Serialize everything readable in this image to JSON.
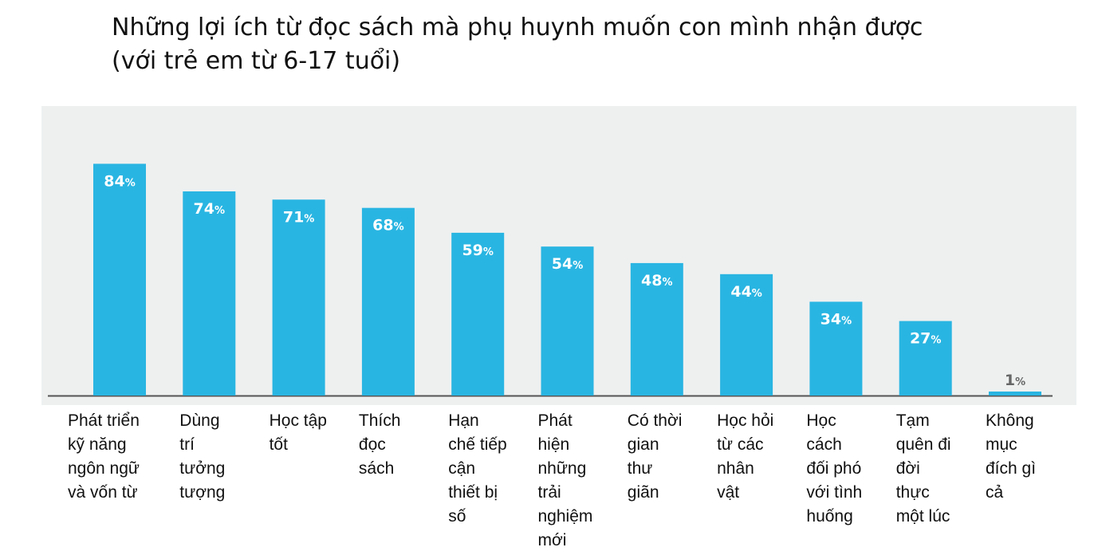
{
  "title": {
    "line1": "Những lợi ích từ đọc sách mà phụ huynh muốn con mình nhận được",
    "line2": "(với trẻ em từ 6-17 tuổi)"
  },
  "colors": {
    "bar": "#29b5e2",
    "panel": "#eef0f0",
    "axis": "#555555"
  },
  "chart_data": {
    "type": "bar",
    "ylim": [
      0,
      100
    ],
    "grid": false,
    "legend": "none",
    "categories": [
      "Phát triển\nkỹ năng\nngôn ngữ\nvà vốn từ",
      "Dùng\ntrí\ntưởng\ntượng",
      "Học tập\ntốt",
      "Thích\nđọc\nsách",
      "Hạn\nchế tiếp\ncận\nthiết bị\nsố",
      "Phát\nhiện\nnhững\ntrải\nnghiệm\nmới",
      "Có thời\ngian\nthư\ngiãn",
      "Học hỏi\ntừ các\nnhân\nvật",
      "Học\ncách\nđối phó\nvới tình\nhuống",
      "Tạm\nquên đi\nđời\nthực\nmột lúc",
      "Không\nmục\nđích gì\ncả"
    ],
    "values": [
      84,
      74,
      71,
      68,
      59,
      54,
      48,
      44,
      34,
      27,
      1
    ],
    "value_labels": [
      "84",
      "74",
      "71",
      "68",
      "59",
      "54",
      "48",
      "44",
      "34",
      "27",
      "1"
    ],
    "value_suffix": "%"
  }
}
